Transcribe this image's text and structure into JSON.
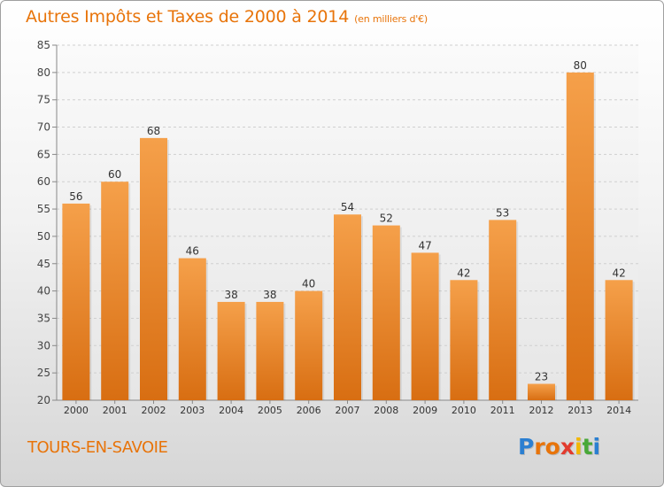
{
  "chart_data": {
    "type": "bar",
    "title": "Autres Impôts et Taxes de 2000 à 2014",
    "unit": "(en milliers d'€)",
    "categories": [
      "2000",
      "2001",
      "2002",
      "2003",
      "2004",
      "2005",
      "2006",
      "2007",
      "2008",
      "2009",
      "2010",
      "2011",
      "2012",
      "2013",
      "2014"
    ],
    "values": [
      56,
      60,
      68,
      46,
      38,
      38,
      40,
      54,
      52,
      47,
      42,
      53,
      23,
      80,
      42
    ],
    "ylim": [
      20,
      85
    ],
    "yticks": [
      20,
      25,
      30,
      35,
      40,
      45,
      50,
      55,
      60,
      65,
      70,
      75,
      80,
      85
    ],
    "grid": true,
    "bar_color": "#f5a04a",
    "bar_color_dark": "#d86e12"
  },
  "footer": {
    "city": "TOURS-EN-SAVOIE",
    "logo_text": "Proxiti"
  },
  "colors": {
    "accent": "#e8740a"
  }
}
